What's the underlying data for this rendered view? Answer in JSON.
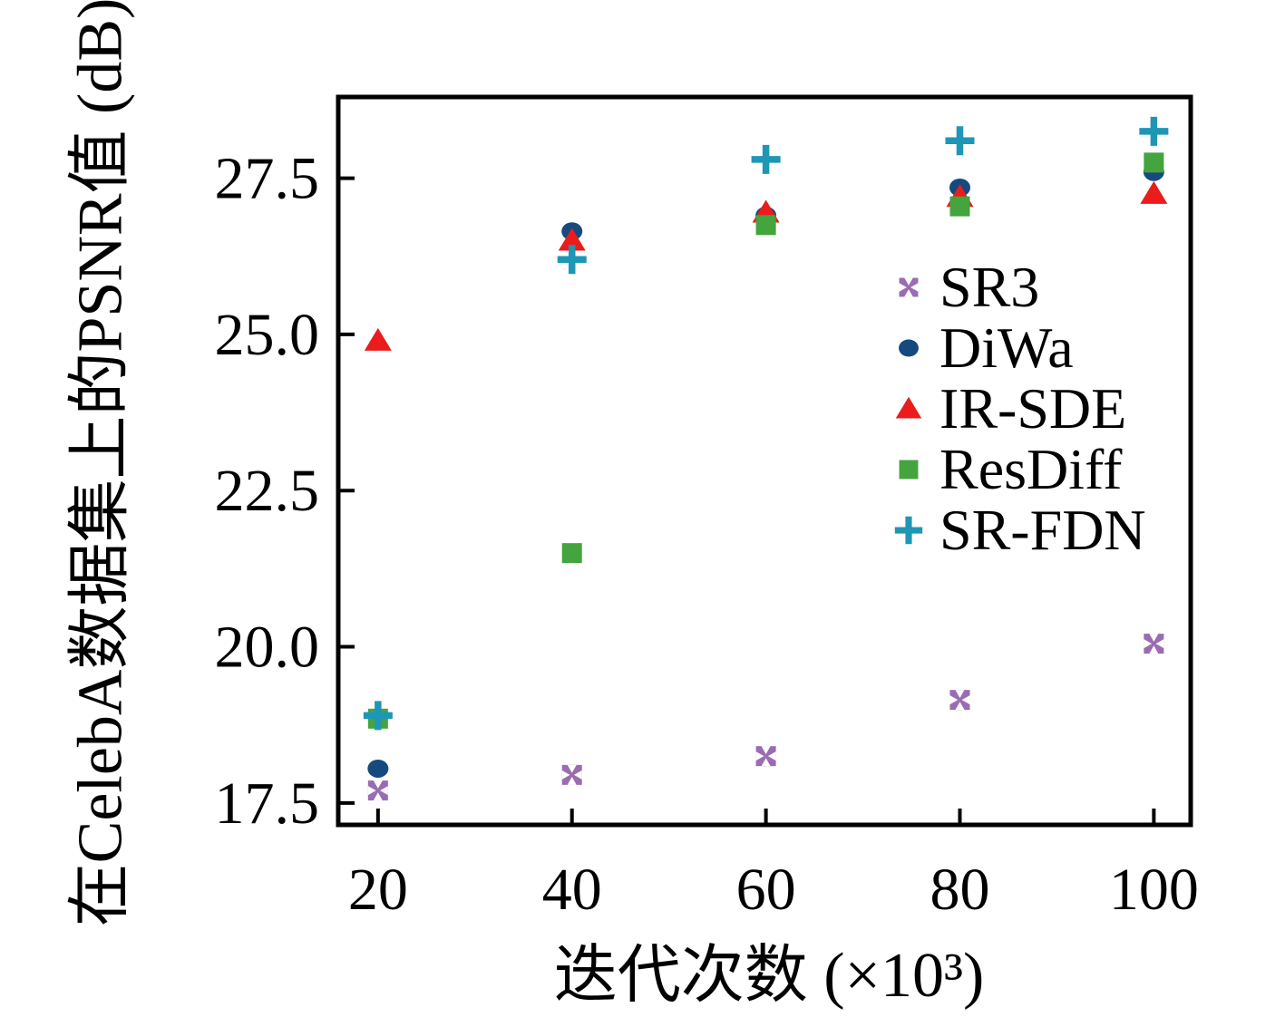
{
  "chart_data": {
    "type": "scatter",
    "title": "",
    "xlabel": "迭代次数 (×10³)",
    "ylabel": "在CelebA数据集上的PSNR值 (dB)",
    "x": [
      20,
      40,
      60,
      80,
      100
    ],
    "xtick_labels": [
      "20",
      "40",
      "60",
      "80",
      "100"
    ],
    "yticks": [
      17.5,
      20.0,
      22.5,
      25.0,
      27.5
    ],
    "ytick_labels": [
      "17.5",
      "20.0",
      "22.5",
      "25.0",
      "27.5"
    ],
    "xlim": [
      15.9,
      103.8
    ],
    "ylim": [
      17.15,
      28.8
    ],
    "grid": false,
    "legend_position": "center-right",
    "frame_color": "#000000",
    "series": [
      {
        "name": "SR3",
        "marker": "square-x",
        "color": "#9a6cb2",
        "values": [
          17.7,
          17.95,
          18.25,
          19.15,
          20.05
        ]
      },
      {
        "name": "DiWa",
        "marker": "circle",
        "color": "#16497e",
        "values": [
          18.05,
          26.65,
          26.9,
          27.35,
          27.6
        ]
      },
      {
        "name": "IR-SDE",
        "marker": "triangle",
        "color": "#ea1c1c",
        "values": [
          24.9,
          26.5,
          26.95,
          27.2,
          27.25
        ]
      },
      {
        "name": "ResDiff",
        "marker": "square",
        "color": "#44a43e",
        "values": [
          18.85,
          21.5,
          26.75,
          27.05,
          27.75
        ]
      },
      {
        "name": "SR-FDN",
        "marker": "plus",
        "color": "#1e96b6",
        "values": [
          18.9,
          26.2,
          27.8,
          28.1,
          28.25
        ]
      }
    ]
  }
}
